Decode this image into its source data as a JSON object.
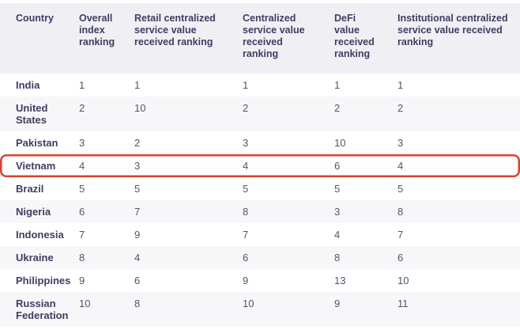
{
  "chart_data": {
    "type": "table",
    "columns": [
      "Country",
      "Overall index ranking",
      "Retail centralized service value received ranking",
      "Centralized service value received ranking",
      "DeFi value received ranking",
      "Institutional centralized service value received ranking"
    ],
    "rows": [
      {
        "country": "India",
        "values": [
          "1",
          "1",
          "1",
          "1",
          "1"
        ],
        "highlighted": false
      },
      {
        "country": "United States",
        "values": [
          "2",
          "10",
          "2",
          "2",
          "2"
        ],
        "highlighted": false
      },
      {
        "country": "Pakistan",
        "values": [
          "3",
          "2",
          "3",
          "10",
          "3"
        ],
        "highlighted": false
      },
      {
        "country": "Vietnam",
        "values": [
          "4",
          "3",
          "4",
          "6",
          "4"
        ],
        "highlighted": true
      },
      {
        "country": "Brazil",
        "values": [
          "5",
          "5",
          "5",
          "5",
          "5"
        ],
        "highlighted": false
      },
      {
        "country": "Nigeria",
        "values": [
          "6",
          "7",
          "8",
          "3",
          "8"
        ],
        "highlighted": false
      },
      {
        "country": "Indonesia",
        "values": [
          "7",
          "9",
          "7",
          "4",
          "7"
        ],
        "highlighted": false
      },
      {
        "country": "Ukraine",
        "values": [
          "8",
          "4",
          "6",
          "8",
          "6"
        ],
        "highlighted": false
      },
      {
        "country": "Philippines",
        "values": [
          "9",
          "6",
          "9",
          "13",
          "10"
        ],
        "highlighted": false
      },
      {
        "country": "Russian Federation",
        "values": [
          "10",
          "8",
          "10",
          "9",
          "11"
        ],
        "highlighted": false
      }
    ],
    "highlighted_row": "Vietnam",
    "legend_position": "none",
    "grid": "row-striping"
  },
  "colors": {
    "header_bg": "#f0f0f4",
    "row_alt_bg": "#f7f7f9",
    "highlight_bg": "#fdfdfe",
    "highlight_border": "#d9422f",
    "heading_text": "#3e3d62",
    "value_text": "#54536e"
  }
}
